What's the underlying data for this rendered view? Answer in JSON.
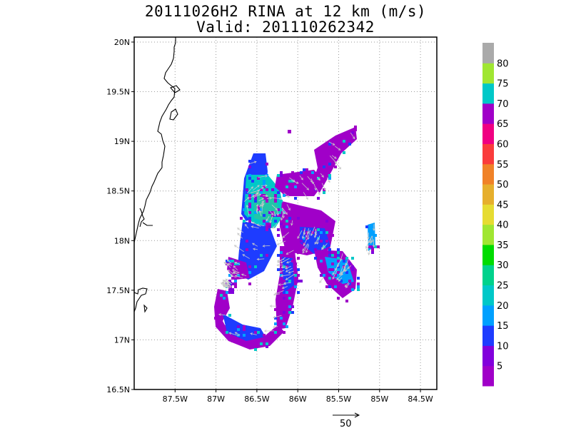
{
  "header": {
    "title": "20111026H2 RINA at 12 km (m/s)",
    "subtitle": "Valid: 201110262342"
  },
  "map": {
    "lon_range": [
      -88.0,
      -84.3
    ],
    "lat_range": [
      16.5,
      20.05
    ],
    "lon_ticks": [
      {
        "value": -87.5,
        "label": "87.5W"
      },
      {
        "value": -87.0,
        "label": "87W"
      },
      {
        "value": -86.5,
        "label": "86.5W"
      },
      {
        "value": -86.0,
        "label": "86W"
      },
      {
        "value": -85.5,
        "label": "85.5W"
      },
      {
        "value": -85.0,
        "label": "85W"
      },
      {
        "value": -84.5,
        "label": "84.5W"
      }
    ],
    "lat_ticks": [
      {
        "value": 20.0,
        "label": "20N"
      },
      {
        "value": 19.5,
        "label": "19.5N"
      },
      {
        "value": 19.0,
        "label": "19N"
      },
      {
        "value": 18.5,
        "label": "18.5N"
      },
      {
        "value": 18.0,
        "label": "18N"
      },
      {
        "value": 17.5,
        "label": "17.5N"
      },
      {
        "value": 17.0,
        "label": "17N"
      },
      {
        "value": 16.5,
        "label": "16.5N"
      }
    ],
    "grid": "dotted",
    "coastline_color": "#000000"
  },
  "colorbar": {
    "levels": [
      {
        "label": "",
        "color": "#a000c8"
      },
      {
        "label": "5",
        "color": "#8200dc"
      },
      {
        "label": "10",
        "color": "#1e3cff"
      },
      {
        "label": "15",
        "color": "#00a0ff"
      },
      {
        "label": "20",
        "color": "#00c8c8"
      },
      {
        "label": "25",
        "color": "#00d28c"
      },
      {
        "label": "30",
        "color": "#00dc00"
      },
      {
        "label": "35",
        "color": "#a0e632"
      },
      {
        "label": "40",
        "color": "#e6dc32"
      },
      {
        "label": "45",
        "color": "#e6af2d"
      },
      {
        "label": "50",
        "color": "#f08228"
      },
      {
        "label": "55",
        "color": "#fa3c3c"
      },
      {
        "label": "60",
        "color": "#f00082"
      },
      {
        "label": "65",
        "color": "#a000c8"
      },
      {
        "label": "70",
        "color": "#00c8c8"
      },
      {
        "label": "75",
        "color": "#a0e632"
      },
      {
        "label": "80",
        "color": "#aaaaaa"
      }
    ]
  },
  "reference_vector": {
    "label": "50"
  }
}
